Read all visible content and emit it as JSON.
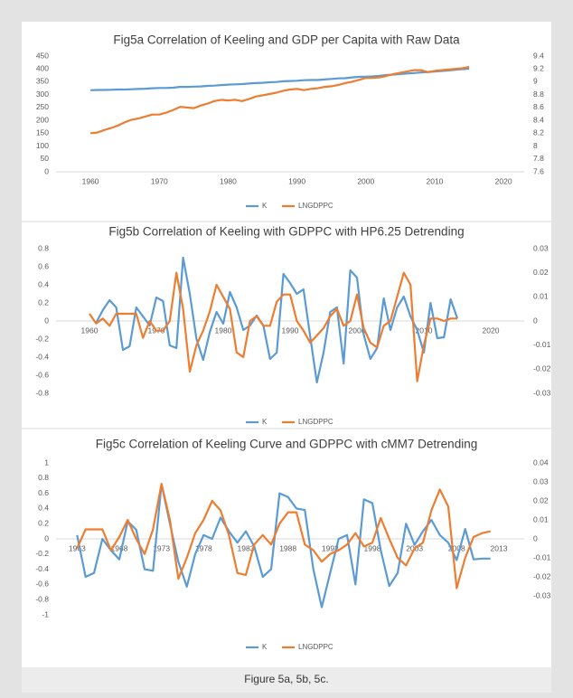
{
  "chart_data": [
    {
      "type": "line",
      "title": "Fig5a Correlation of Keeling and GDP per Capita with Raw Data",
      "x": [
        1960,
        1961,
        1962,
        1963,
        1964,
        1965,
        1966,
        1967,
        1968,
        1969,
        1970,
        1971,
        1972,
        1973,
        1974,
        1975,
        1976,
        1977,
        1978,
        1979,
        1980,
        1981,
        1982,
        1983,
        1984,
        1985,
        1986,
        1987,
        1988,
        1989,
        1990,
        1991,
        1992,
        1993,
        1994,
        1995,
        1996,
        1997,
        1998,
        1999,
        2000,
        2001,
        2002,
        2003,
        2004,
        2005,
        2006,
        2007,
        2008,
        2009,
        2010,
        2011,
        2012,
        2013,
        2014,
        2015
      ],
      "series": [
        {
          "name": "K",
          "color": "#5b9bd5",
          "values": [
            317,
            318,
            318,
            319,
            320,
            320,
            321,
            322,
            323,
            325,
            326,
            326,
            327,
            330,
            330,
            331,
            332,
            334,
            335,
            337,
            339,
            340,
            341,
            343,
            345,
            346,
            348,
            349,
            352,
            353,
            354,
            356,
            357,
            357,
            359,
            361,
            363,
            364,
            367,
            369,
            370,
            371,
            373,
            376,
            378,
            380,
            382,
            384,
            386,
            388,
            390,
            392,
            394,
            397,
            399,
            401
          ]
        },
        {
          "name": "LNGDPPC",
          "color": "#ed7d31",
          "axis": "y2",
          "values": [
            8.2,
            8.21,
            8.25,
            8.28,
            8.32,
            8.37,
            8.41,
            8.43,
            8.46,
            8.49,
            8.49,
            8.52,
            8.56,
            8.61,
            8.6,
            8.59,
            8.63,
            8.66,
            8.7,
            8.72,
            8.71,
            8.72,
            8.7,
            8.73,
            8.77,
            8.79,
            8.81,
            8.83,
            8.86,
            8.88,
            8.89,
            8.87,
            8.89,
            8.9,
            8.92,
            8.93,
            8.95,
            8.98,
            9.0,
            9.03,
            9.06,
            9.06,
            9.07,
            9.09,
            9.12,
            9.14,
            9.16,
            9.18,
            9.18,
            9.15,
            9.17,
            9.18,
            9.19,
            9.2,
            9.21,
            9.23
          ]
        }
      ],
      "xlim": [
        1955,
        2023
      ],
      "xticks": [
        1960,
        1970,
        1980,
        1990,
        2000,
        2010,
        2020
      ],
      "ylim": [
        0,
        450
      ],
      "yticks": [
        0,
        50,
        100,
        150,
        200,
        250,
        300,
        350,
        400,
        450
      ],
      "y2lim": [
        7.6,
        9.4
      ],
      "y2ticks": [
        7.6,
        7.8,
        8,
        8.2,
        8.4,
        8.6,
        8.8,
        9,
        9.2,
        9.4
      ]
    },
    {
      "type": "line",
      "title": "Fig5b Correlation of Keeling with GDPPC with HP6.25 Detrending",
      "x": [
        1960,
        1961,
        1962,
        1963,
        1964,
        1965,
        1966,
        1967,
        1968,
        1969,
        1970,
        1971,
        1972,
        1973,
        1974,
        1975,
        1976,
        1977,
        1978,
        1979,
        1980,
        1981,
        1982,
        1983,
        1984,
        1985,
        1986,
        1987,
        1988,
        1989,
        1990,
        1991,
        1992,
        1993,
        1994,
        1995,
        1996,
        1997,
        1998,
        1999,
        2000,
        2001,
        2002,
        2003,
        2004,
        2005,
        2006,
        2007,
        2008,
        2009,
        2010,
        2011,
        2012,
        2013,
        2014,
        2015
      ],
      "series": [
        {
          "name": "K",
          "color": "#5b9bd5",
          "values": [
            null,
            -0.02,
            0.12,
            0.23,
            0.15,
            -0.32,
            -0.28,
            0.15,
            0.05,
            -0.05,
            0.26,
            0.22,
            -0.27,
            -0.3,
            0.7,
            0.3,
            -0.2,
            -0.43,
            -0.12,
            0.1,
            -0.03,
            0.32,
            0.15,
            -0.1,
            -0.05,
            0.06,
            -0.05,
            -0.42,
            -0.35,
            0.52,
            0.42,
            0.3,
            0.35,
            -0.17,
            -0.68,
            -0.35,
            0.1,
            0.15,
            -0.47,
            0.56,
            0.48,
            -0.15,
            -0.42,
            -0.3,
            0.25,
            -0.1,
            0.15,
            0.27,
            0.05,
            -0.1,
            -0.35,
            0.2,
            -0.19,
            -0.18,
            0.24,
            0.03
          ]
        },
        {
          "name": "LNGDPPC",
          "color": "#ed7d31",
          "axis": "y2",
          "values": [
            0.003,
            -0.001,
            0.001,
            -0.002,
            0.003,
            0.003,
            0.003,
            0.003,
            -0.007,
            0,
            -0.004,
            -0.004,
            0,
            0.02,
            0.005,
            -0.021,
            -0.01,
            -0.004,
            0.004,
            0.015,
            0.01,
            0.005,
            -0.013,
            -0.015,
            0,
            0.002,
            -0.002,
            -0.002,
            0.008,
            0.011,
            0.011,
            0,
            -0.004,
            -0.009,
            -0.006,
            -0.003,
            0.002,
            0.005,
            -0.002,
            0,
            0.011,
            -0.003,
            -0.009,
            -0.011,
            -0.002,
            0,
            0.01,
            0.02,
            0.015,
            -0.025,
            -0.01,
            0.001,
            0.001,
            0,
            0.001,
            0.001
          ]
        }
      ],
      "xlim": [
        1955,
        2025
      ],
      "xticks": [
        1960,
        1970,
        1980,
        1990,
        2000,
        2010,
        2020
      ],
      "ylim": [
        -0.8,
        0.8
      ],
      "yticks": [
        -0.8,
        -0.6,
        -0.4,
        -0.2,
        0,
        0.2,
        0.4,
        0.6,
        0.8
      ],
      "y2lim": [
        -0.03,
        0.03
      ],
      "y2ticks": [
        -0.03,
        -0.02,
        -0.01,
        0,
        0.01,
        0.02,
        0.03
      ]
    },
    {
      "type": "line",
      "title": "Fig5c Correlation of Keeling Curve and GDPPC with cMM7 Detrending",
      "x": [
        1963,
        1964,
        1965,
        1966,
        1967,
        1968,
        1969,
        1970,
        1971,
        1972,
        1973,
        1974,
        1975,
        1976,
        1977,
        1978,
        1979,
        1980,
        1981,
        1982,
        1983,
        1984,
        1985,
        1986,
        1987,
        1988,
        1989,
        1990,
        1991,
        1992,
        1993,
        1994,
        1995,
        1996,
        1997,
        1998,
        1999,
        2000,
        2001,
        2002,
        2003,
        2004,
        2005,
        2006,
        2007,
        2008,
        2009,
        2010,
        2011,
        2012
      ],
      "series": [
        {
          "name": "K",
          "color": "#5b9bd5",
          "values": [
            0.05,
            -0.5,
            -0.45,
            0,
            -0.15,
            -0.27,
            0.23,
            0.12,
            -0.4,
            -0.42,
            0.72,
            0.2,
            -0.3,
            -0.63,
            -0.2,
            0.05,
            0,
            0.28,
            0.1,
            -0.05,
            0.1,
            -0.1,
            -0.5,
            -0.4,
            0.6,
            0.55,
            0.4,
            0.38,
            -0.4,
            -0.9,
            -0.45,
            0,
            0.05,
            -0.6,
            0.52,
            0.47,
            -0.15,
            -0.62,
            -0.45,
            0.2,
            -0.08,
            0.1,
            0.25,
            0.05,
            -0.05,
            -0.28,
            0.13,
            -0.27,
            -0.26,
            -0.26
          ]
        },
        {
          "name": "LNGDPPC",
          "color": "#ed7d31",
          "axis": "y2",
          "values": [
            -0.005,
            0.005,
            0.005,
            0.005,
            -0.006,
            0.001,
            0.01,
            0,
            -0.008,
            0.005,
            0.029,
            0.01,
            -0.021,
            -0.01,
            0.003,
            0.01,
            0.02,
            0.015,
            0.002,
            -0.018,
            -0.019,
            -0.003,
            0.002,
            -0.003,
            0.008,
            0.014,
            0.014,
            -0.003,
            -0.006,
            -0.012,
            -0.008,
            -0.006,
            -0.003,
            0.003,
            -0.004,
            -0.002,
            0.011,
            0,
            -0.01,
            -0.014,
            -0.005,
            -0.002,
            0.015,
            0.026,
            0.017,
            -0.026,
            -0.01,
            0.001,
            0.003,
            0.004
          ]
        }
      ],
      "xlim": [
        1960.5,
        2016
      ],
      "xticks": [
        1963,
        1968,
        1973,
        1978,
        1983,
        1988,
        1993,
        1998,
        2003,
        2008,
        2013
      ],
      "ylim": [
        -1,
        1
      ],
      "yticks": [
        -1,
        -0.8,
        -0.6,
        -0.4,
        -0.2,
        0,
        0.2,
        0.4,
        0.6,
        0.8,
        1
      ],
      "y2lim": [
        -0.04,
        0.04
      ],
      "y2ticks": [
        -0.03,
        -0.02,
        -0.01,
        0,
        0.01,
        0.02,
        0.03,
        0.04
      ]
    }
  ],
  "caption": "Figure 5a, 5b, 5c."
}
